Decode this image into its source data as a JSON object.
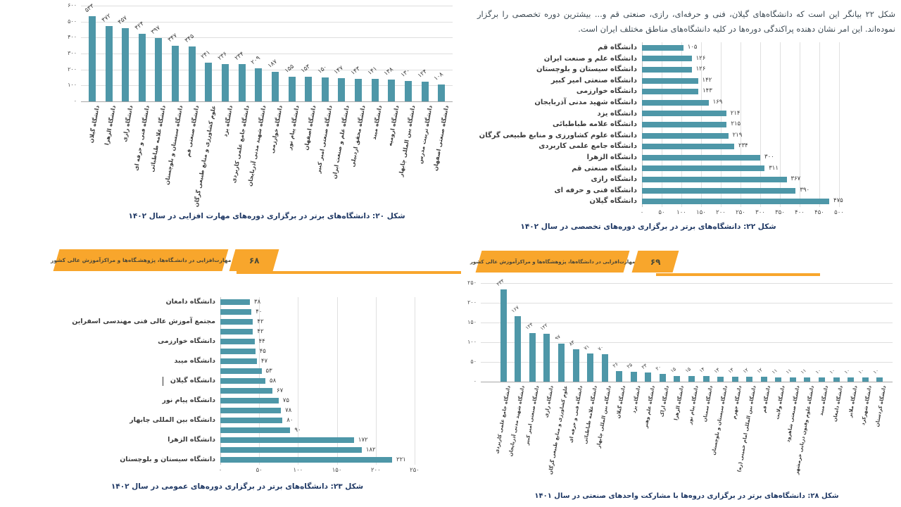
{
  "colors": {
    "bar": "#4e97a8",
    "banner": "#f8a62c",
    "caption": "#1f3864",
    "grid": "#dedede"
  },
  "banners": {
    "left": {
      "title": "مهارت‌افزایی در دانشـگاه‌ها، پژوهشـگاه‌ها و مراکزآموزش عالی کشور",
      "page_number": "۶۸"
    },
    "right": {
      "title": "مهارت‌افزایی در دانشگاه‌ها، پژوهشگاه‌ها و مراکزآموزش عالی کشور",
      "page_number": "۶۹"
    }
  },
  "paragraph": {
    "text": "شکل ۲۲ بیانگر این است که دانشگاه‌های گیلان، فنی و حرفه‌ای، رازی، صنعتی قم و... بیشترین دوره تخصصی را برگزار نموده‌اند. این امر نشان دهنده پراکندگی دوره‌ها در کلیه دانشگاه‌های مناطق مختلف ایران است."
  },
  "chart_data": [
    {
      "id": "fig20",
      "type": "bar",
      "orientation": "vertical",
      "grid": true,
      "legend": false,
      "title": "شکل ۲۰: دانشگاه‌های برتر در برگزاری دوره‌های مهارت افزایی در سال ۱۴۰۲",
      "ylim": [
        0,
        600
      ],
      "y_ticks": [
        "۶۰۰",
        "۵۰۰",
        "۴۰۰",
        "۳۰۰",
        "۲۰۰",
        "۱۰۰",
        "۰"
      ],
      "categories": [
        "دانشگاه گیلان",
        "دانشگاه الزهرا",
        "دانشگاه رازی",
        "دانشگاه فنی و حرفه ای",
        "دانشگاه علامه طباطبائی",
        "دانشگاه سیستان و بلوچستان",
        "دانشگاه صنعتی قم",
        "علوم کشاورزی و منابع طبیعی گرگان",
        "دانشگاه یزد",
        "دانشگاه جامع علمی کاربردی",
        "دانشگاه شهید مدنی آذربایجان",
        "دانشگاه خوارزمی",
        "دانشگاه پیام نور",
        "دانشگاه اصفهان",
        "دانشگاه صنعتی امیر کبیر",
        "دانشگاه علم و صنعت ایران",
        "دانشگاه محقق اردبیلی",
        "دانشگاه میبد",
        "دانشگاه ارومیه",
        "دانشگاه بین المللی چابهار",
        "دانشگاه تربیت مدرس",
        "دانشگاه صنعتی اصفهان"
      ],
      "values": [
        533,
        472,
        457,
        424,
        397,
        347,
        345,
        241,
        236,
        234,
        209,
        187,
        155,
        153,
        150,
        147,
        143,
        141,
        138,
        130,
        124,
        108
      ],
      "value_labels": [
        "۵۳۳",
        "۴۷۲",
        "۴۵۷",
        "۴۲۴",
        "۳۹۷",
        "۳۴۷",
        "۳۴۵",
        "۲۴۱",
        "۲۳۶",
        "۲۳۴",
        "۲۰۹",
        "۱۸۷",
        "۱۵۵",
        "۱۵۳",
        "۱۵۰",
        "۱۴۷",
        "۱۴۳",
        "۱۴۱",
        "۱۳۸",
        "۱۳۰",
        "۱۲۴",
        "۱۰۸"
      ]
    },
    {
      "id": "fig22",
      "type": "bar",
      "orientation": "horizontal",
      "grid": true,
      "legend": false,
      "title": "شکل ۲۲:  دانشگاه‌های برتر در برگزاری دوره‌های  تخصصی در سال ۱۴۰۲",
      "xlim": [
        0,
        500
      ],
      "x_ticks": [
        "۰",
        "۵۰",
        "۱۰۰",
        "۱۵۰",
        "۲۰۰",
        "۲۵۰",
        "۳۰۰",
        "۳۵۰",
        "۴۰۰",
        "۴۵۰",
        "۵۰۰"
      ],
      "categories": [
        "دانشگاه قم",
        "دانشگاه علم و صنعت ایران",
        "دانشگاه سیستان و بلوچستان",
        "دانشگاه صنعتی امیر کبیر",
        "دانشگاه خوارزمی",
        "دانشگاه شهید مدنی آذربایجان",
        "دانشگاه یزد",
        "دانشگاه علامه طباطبائی",
        "دانشگاه علوم کشاورزی و منابع طبیعی گرگان",
        "دانشگاه جامع علمی کاربردی",
        "دانشگاه الزهرا",
        "دانشگاه صنعتی قم",
        "دانشگاه رازی",
        "دانشگاه فنی و حرفه ای",
        "دانشگاه گیلان"
      ],
      "values": [
        105,
        126,
        126,
        142,
        143,
        169,
        214,
        215,
        219,
        234,
        300,
        311,
        367,
        390,
        475
      ],
      "value_labels": [
        "۱۰۵",
        "۱۲۶",
        "۱۲۶",
        "۱۴۲",
        "۱۴۳",
        "۱۶۹",
        "۲۱۴",
        "۲۱۵",
        "۲۱۹",
        "۲۳۴",
        "۳۰۰",
        "۳۱۱",
        "۳۶۷",
        "۳۹۰",
        "۴۷۵"
      ]
    },
    {
      "id": "fig23",
      "type": "bar",
      "orientation": "horizontal",
      "grid": true,
      "legend": false,
      "title": "شکل ۲۳: دانشگاه‌های برتر در برگزاری دوره‌های عمومی در سال ۱۴۰۲",
      "xlim": [
        0,
        250
      ],
      "x_ticks": [
        "۰",
        "۵۰",
        "۱۰۰",
        "۱۵۰",
        "۲۰۰",
        "۲۵۰"
      ],
      "categories": [
        "دانشگاه دامغان",
        "",
        "مجتمع آموزش عالی فنی مهندسی اسفراین",
        "",
        "دانشگاه خوارزمی",
        "",
        "دانشگاه میبد",
        "",
        "دانشگاه گیلان",
        "",
        "دانشگاه پیام نور",
        "",
        "دانشگاه بین المللی چابهار",
        "",
        "دانشگاه الزهرا",
        "",
        "دانشگاه سیستان و بلوچستان"
      ],
      "values": [
        38,
        40,
        42,
        42,
        44,
        45,
        47,
        53,
        58,
        67,
        75,
        78,
        80,
        90,
        172,
        182,
        221
      ],
      "value_labels": [
        "۳۸",
        "۴۰",
        "۴۲",
        "۴۲",
        "۴۴",
        "۴۵",
        "۴۷",
        "۵۳",
        "۵۸",
        "۶۷",
        "۷۵",
        "۷۸",
        "۸۰",
        "۹۰",
        "۱۷۲",
        "۱۸۲",
        "۲۲۱"
      ]
    },
    {
      "id": "fig28",
      "type": "bar",
      "orientation": "vertical",
      "grid": true,
      "legend": false,
      "title": "شکل ۲۸: دانشگاه‌های برتر در برگزاری دروه‌ها با مشارکت واحدهای صنعتی در سال ۱۴۰۱",
      "ylim": [
        0,
        250
      ],
      "y_ticks": [
        "۲۵۰",
        "۲۰۰",
        "۱۵۰",
        "۱۰۰",
        "۵۰",
        "۰"
      ],
      "categories": [
        "دانشگاه جامع علمی کاربردی",
        "دانشگاه شهید مدنی آذربایجان",
        "دانشگاه صنعتی امیر کبیر",
        "دانشگاه رازی",
        "علوم کشاورزی و منابع طبیعی گرگان",
        "دانشگاه فنی و حرفه ای",
        "دانشگاه علامه طباطبائی",
        "دانشگاه بین المللی چابهار",
        "دانشگاه گیلان",
        "دانشگاه یزد",
        "دانشگاه علم وهنر",
        "دانشگاه اراک",
        "دانشگاه الزهرا",
        "دانشگاه پیام نور",
        "دانشگاه سمنان",
        "دانشگاه سیستان و بلوچستان",
        "دانشگاه جهرم",
        "دانشگاه بین المللی امام خمینی (ره)",
        "دانشگاه قم",
        "دانشگاه ولایت",
        "دانشگاه صنعتی شاهرود",
        "دانشگاه علوم وفنون دریایی خرمشهر",
        "دانشگاه میبد",
        "دانشگاه دامغان",
        "دانشگاه ملایر",
        "دانشگاه شهرکرد",
        "دانشگاه کردستان"
      ],
      "values": [
        234,
        167,
        124,
        122,
        97,
        83,
        71,
        70,
        26,
        25,
        23,
        20,
        15,
        15,
        14,
        13,
        13,
        12,
        12,
        11,
        11,
        11,
        10,
        10,
        10,
        10,
        10
      ],
      "value_labels": [
        "۲۳۴",
        "۱۶۷",
        "۱۲۴",
        "۱۲۲",
        "۹۷",
        "۸۳",
        "۷۱",
        "۷۰",
        "۲۶",
        "۲۵",
        "۲۳",
        "۲۰",
        "۱۵",
        "۱۵",
        "۱۴",
        "۱۳",
        "۱۳",
        "۱۲",
        "۱۲",
        "۱۱",
        "۱۱",
        "۱۱",
        "۱۰",
        "۱۰",
        "۱۰",
        "۱۰",
        "۱۰"
      ]
    }
  ]
}
